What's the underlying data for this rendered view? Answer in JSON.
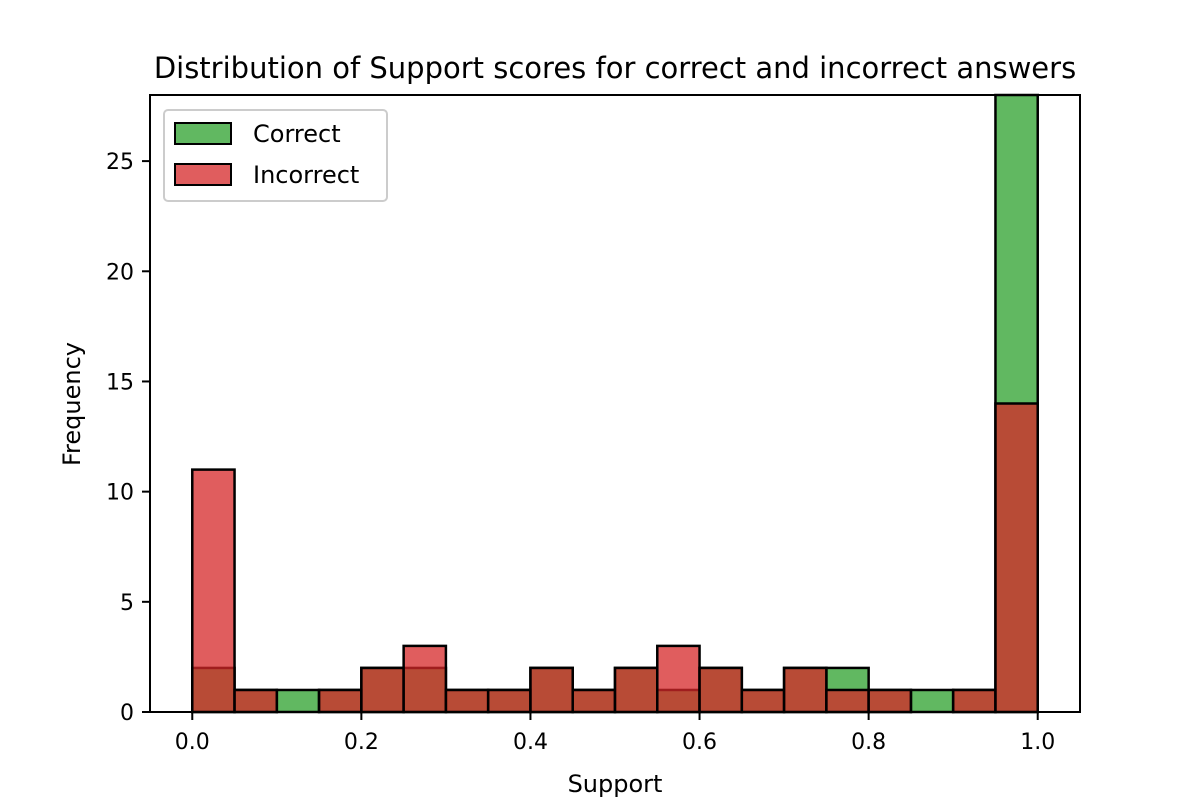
{
  "chart_data": {
    "type": "bar",
    "title": "Distribution of Support scores for correct and incorrect answers",
    "xlabel": "Support",
    "ylabel": "Frequency",
    "xlim": [
      -0.05,
      1.05
    ],
    "ylim": [
      0,
      28
    ],
    "xticks": [
      "0.0",
      "0.2",
      "0.4",
      "0.6",
      "0.8",
      "1.0"
    ],
    "xtick_values": [
      0.0,
      0.2,
      0.4,
      0.6,
      0.8,
      1.0
    ],
    "yticks": [
      "0",
      "5",
      "10",
      "15",
      "20",
      "25"
    ],
    "ytick_values": [
      0,
      5,
      10,
      15,
      20,
      25
    ],
    "bin_width": 0.05,
    "bin_starts": [
      0.0,
      0.05,
      0.1,
      0.15,
      0.2,
      0.25,
      0.3,
      0.35,
      0.4,
      0.45,
      0.5,
      0.55,
      0.6,
      0.65,
      0.7,
      0.75,
      0.8,
      0.85,
      0.9,
      0.95
    ],
    "grid": false,
    "legend_position": "top-left",
    "series": [
      {
        "name": "Correct",
        "color": "#2ca02c",
        "values": [
          2,
          1,
          1,
          1,
          2,
          2,
          1,
          1,
          2,
          1,
          2,
          1,
          2,
          1,
          2,
          2,
          1,
          1,
          1,
          28
        ]
      },
      {
        "name": "Incorrect",
        "color": "#d62728",
        "values": [
          11,
          1,
          0,
          1,
          2,
          3,
          1,
          1,
          2,
          1,
          2,
          3,
          2,
          1,
          2,
          1,
          1,
          0,
          1,
          14
        ]
      }
    ]
  }
}
